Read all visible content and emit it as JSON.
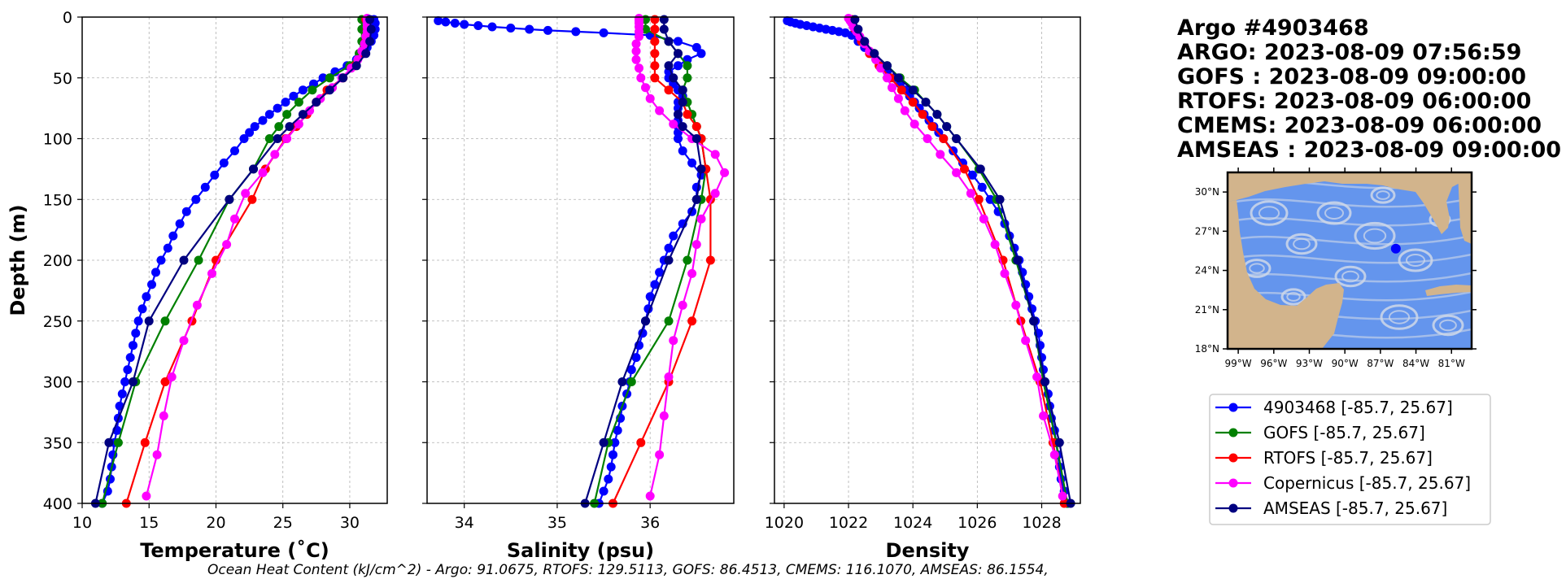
{
  "header": {
    "lines": [
      "Argo #4903468",
      "ARGO:  2023-08-09 07:56:59",
      "GOFS : 2023-08-09 09:00:00",
      "RTOFS: 2023-08-09 06:00:00",
      "CMEMS: 2023-08-09 06:00:00",
      "AMSEAS : 2023-08-09 09:00:00"
    ]
  },
  "footer": "Ocean Heat Content (kJ/cm^2) - Argo: 91.0675,  RTOFS: 129.5113,  GOFS: 86.4513,  CMEMS: 116.1070,  AMSEAS: 86.1554,",
  "map": {
    "lat_labels": [
      "30°N",
      "27°N",
      "24°N",
      "21°N",
      "18°N"
    ],
    "lon_labels": [
      "99°W",
      "96°W",
      "93°W",
      "90°W",
      "87°W",
      "84°W",
      "81°W"
    ],
    "colors": {
      "land": "#d2b48c",
      "ocean": "#6495ed",
      "streamlines": "#cfd8e8",
      "marker": "#0000ff"
    },
    "float_position": {
      "lon": -85.7,
      "lat": 25.67
    }
  },
  "legend": [
    {
      "label": "4903468 [-85.7, 25.67]",
      "color": "#0000ff"
    },
    {
      "label": "GOFS [-85.7, 25.67]",
      "color": "#008000"
    },
    {
      "label": "RTOFS [-85.7, 25.67]",
      "color": "#ff0000"
    },
    {
      "label": "Copernicus [-85.7, 25.67]",
      "color": "#ff00ff"
    },
    {
      "label": "AMSEAS [-85.7, 25.67]",
      "color": "#000080"
    }
  ],
  "chart_data": [
    {
      "type": "line",
      "xlabel": "Temperature (˚C)",
      "ylabel": "Depth (m)",
      "xlim": [
        10,
        32.8
      ],
      "ylim": [
        400,
        0
      ],
      "xticks": [
        10,
        15,
        20,
        25,
        30
      ],
      "yticks": [
        0,
        50,
        100,
        150,
        200,
        250,
        300,
        350,
        400
      ],
      "grid": true,
      "series": [
        {
          "name": "4903468",
          "color": "#0000ff",
          "depth": [
            2,
            5,
            10,
            15,
            20,
            25,
            30,
            35,
            40,
            45,
            50,
            55,
            60,
            65,
            70,
            75,
            80,
            85,
            90,
            95,
            100,
            110,
            120,
            130,
            140,
            150,
            160,
            170,
            180,
            190,
            200,
            210,
            220,
            230,
            240,
            250,
            260,
            270,
            280,
            290,
            300,
            310,
            320,
            330,
            340,
            350,
            360,
            370,
            380,
            390,
            400
          ],
          "values": [
            31.8,
            31.9,
            31.9,
            31.8,
            31.6,
            31.3,
            31,
            30.5,
            29.8,
            28.9,
            28,
            27.3,
            26.5,
            25.8,
            25.2,
            24.6,
            24,
            23.5,
            22.9,
            22.5,
            22.1,
            21.4,
            20.6,
            19.9,
            19.2,
            18.5,
            17.8,
            17.3,
            16.8,
            16.4,
            15.9,
            15.5,
            15.2,
            14.8,
            14.5,
            14.2,
            14,
            13.8,
            13.6,
            13.4,
            13.2,
            13,
            12.8,
            12.7,
            12.6,
            12.4,
            12.3,
            12.2,
            12.1,
            11.9,
            11.5
          ]
        },
        {
          "name": "GOFS",
          "color": "#008000",
          "depth": [
            2,
            10,
            20,
            30,
            40,
            50,
            60,
            70,
            80,
            90,
            100,
            125,
            150,
            200,
            250,
            300,
            350,
            400
          ],
          "values": [
            30.9,
            30.9,
            30.9,
            30.7,
            30,
            28.5,
            27.2,
            26.2,
            25.3,
            24.7,
            24,
            22.8,
            21,
            18.7,
            16.2,
            14,
            12.7,
            11.5
          ]
        },
        {
          "name": "RTOFS",
          "color": "#ff0000",
          "depth": [
            2,
            10,
            20,
            30,
            40,
            50,
            60,
            70,
            80,
            90,
            100,
            125,
            150,
            200,
            250,
            300,
            350,
            400
          ],
          "values": [
            31.2,
            31.3,
            31.2,
            31,
            30.4,
            29.5,
            28.3,
            27.5,
            26.8,
            26,
            25.2,
            23.7,
            22.7,
            20,
            18.2,
            16.2,
            14.7,
            13.3
          ]
        },
        {
          "name": "Copernicus",
          "color": "#ff00ff",
          "depth": [
            1,
            3,
            5,
            8,
            12,
            16,
            22,
            28,
            35,
            42,
            50,
            58,
            67,
            77,
            88,
            100,
            113,
            128,
            145,
            166,
            187,
            211,
            237,
            266,
            296,
            328,
            360,
            394
          ],
          "values": [
            31.3,
            31.3,
            31.3,
            31.3,
            31.3,
            31.2,
            31.1,
            30.9,
            30.6,
            30.1,
            29.4,
            28.7,
            27.8,
            27,
            26.2,
            25.3,
            24.4,
            23.5,
            22.2,
            21.4,
            20.8,
            19.7,
            18.6,
            17.6,
            16.7,
            16.1,
            15.6,
            14.8
          ]
        },
        {
          "name": "AMSEAS",
          "color": "#000080",
          "depth": [
            2,
            10,
            20,
            30,
            40,
            50,
            60,
            70,
            80,
            90,
            100,
            125,
            150,
            200,
            250,
            300,
            350,
            400
          ],
          "values": [
            31.5,
            31.6,
            31.5,
            31.2,
            30.5,
            29.5,
            28.5,
            27.5,
            26.5,
            25.5,
            24.6,
            22.8,
            21,
            17.6,
            15,
            13.8,
            12,
            11
          ]
        }
      ]
    },
    {
      "type": "line",
      "xlabel": "Salinity (psu)",
      "ylabel": "",
      "xlim": [
        33.6,
        36.9
      ],
      "ylim": [
        400,
        0
      ],
      "xticks": [
        34,
        35,
        36
      ],
      "yticks": [
        0,
        50,
        100,
        150,
        200,
        250,
        300,
        350,
        400
      ],
      "grid": true,
      "series": [
        {
          "name": "4903468",
          "color": "#0000ff",
          "depth": [
            3,
            4,
            5,
            6,
            7,
            8,
            9,
            10,
            11,
            12,
            13,
            15,
            20,
            25,
            30,
            35,
            40,
            45,
            50,
            55,
            60,
            65,
            70,
            75,
            80,
            85,
            90,
            95,
            100,
            110,
            120,
            130,
            140,
            150,
            160,
            170,
            180,
            190,
            200,
            210,
            220,
            230,
            240,
            250,
            260,
            270,
            280,
            290,
            300,
            310,
            320,
            330,
            340,
            350,
            360,
            370,
            380,
            390,
            400
          ],
          "values": [
            33.72,
            33.8,
            33.9,
            34,
            34.15,
            34.3,
            34.5,
            34.7,
            34.9,
            35.2,
            35.5,
            36,
            36.3,
            36.5,
            36.55,
            36.4,
            36.3,
            36.2,
            36.2,
            36.25,
            36.3,
            36.35,
            36.3,
            36.3,
            36.3,
            36.3,
            36.3,
            36.3,
            36.3,
            36.35,
            36.45,
            36.55,
            36.5,
            36.5,
            36.45,
            36.35,
            36.25,
            36.2,
            36.15,
            36.1,
            36.05,
            36,
            35.98,
            35.95,
            35.92,
            35.88,
            35.85,
            35.8,
            35.78,
            35.75,
            35.7,
            35.68,
            35.65,
            35.62,
            35.6,
            35.58,
            35.55,
            35.5,
            35.45
          ]
        },
        {
          "name": "GOFS",
          "color": "#008000",
          "depth": [
            2,
            10,
            20,
            30,
            40,
            50,
            60,
            70,
            80,
            90,
            100,
            125,
            150,
            200,
            250,
            300,
            350,
            400
          ],
          "values": [
            35.95,
            35.95,
            36.2,
            36.3,
            36.4,
            36.4,
            36.35,
            36.4,
            36.45,
            36.5,
            36.55,
            36.6,
            36.55,
            36.4,
            36.2,
            35.8,
            35.55,
            35.4
          ]
        },
        {
          "name": "RTOFS",
          "color": "#ff0000",
          "depth": [
            2,
            10,
            20,
            30,
            40,
            50,
            60,
            70,
            80,
            90,
            100,
            125,
            150,
            200,
            250,
            300,
            350,
            400
          ],
          "values": [
            36.05,
            36.05,
            36.05,
            36.05,
            36.05,
            36.05,
            36.2,
            36.35,
            36.4,
            36.5,
            36.55,
            36.6,
            36.65,
            36.65,
            36.45,
            36.2,
            35.9,
            35.6
          ]
        },
        {
          "name": "Copernicus",
          "color": "#ff00ff",
          "depth": [
            1,
            3,
            5,
            8,
            12,
            16,
            22,
            28,
            35,
            42,
            50,
            58,
            67,
            77,
            88,
            100,
            113,
            128,
            145,
            166,
            187,
            211,
            237,
            266,
            296,
            328,
            360,
            394
          ],
          "values": [
            35.88,
            35.88,
            35.88,
            35.88,
            35.88,
            35.88,
            35.85,
            35.85,
            35.85,
            35.88,
            35.9,
            35.95,
            36,
            36.1,
            36.25,
            36.45,
            36.7,
            36.8,
            36.7,
            36.55,
            36.5,
            36.45,
            36.35,
            36.25,
            36.2,
            36.15,
            36.1,
            36.0
          ]
        },
        {
          "name": "AMSEAS",
          "color": "#000080",
          "depth": [
            2,
            10,
            20,
            30,
            40,
            50,
            60,
            70,
            80,
            90,
            100,
            125,
            150,
            200,
            250,
            300,
            350,
            400
          ],
          "values": [
            36.15,
            36.15,
            36.2,
            36.3,
            36.2,
            36.25,
            36.35,
            36.35,
            36.3,
            36.35,
            36.5,
            36.55,
            36.5,
            36.2,
            35.95,
            35.7,
            35.5,
            35.3
          ]
        }
      ]
    },
    {
      "type": "line",
      "xlabel": "Density",
      "ylabel": "",
      "xlim": [
        1019.7,
        1029.2
      ],
      "ylim": [
        400,
        0
      ],
      "xticks": [
        1020,
        1022,
        1024,
        1026,
        1028
      ],
      "yticks": [
        0,
        50,
        100,
        150,
        200,
        250,
        300,
        350,
        400
      ],
      "grid": true,
      "series": [
        {
          "name": "4903468",
          "color": "#0000ff",
          "depth": [
            3,
            4,
            5,
            6,
            7,
            8,
            9,
            10,
            11,
            12,
            13,
            15,
            20,
            25,
            30,
            35,
            40,
            45,
            50,
            55,
            60,
            65,
            70,
            75,
            80,
            85,
            90,
            95,
            100,
            110,
            120,
            130,
            140,
            150,
            160,
            170,
            180,
            190,
            200,
            210,
            220,
            230,
            240,
            250,
            260,
            270,
            280,
            290,
            300,
            310,
            320,
            330,
            340,
            350,
            360,
            370,
            380,
            390,
            400
          ],
          "values": [
            1020.1,
            1020.2,
            1020.35,
            1020.5,
            1020.7,
            1020.9,
            1021.1,
            1021.3,
            1021.5,
            1021.7,
            1021.9,
            1022.1,
            1022.3,
            1022.5,
            1022.7,
            1022.85,
            1023,
            1023.2,
            1023.4,
            1023.6,
            1023.75,
            1023.9,
            1024.05,
            1024.2,
            1024.35,
            1024.5,
            1024.65,
            1024.8,
            1024.95,
            1025.25,
            1025.55,
            1025.85,
            1026.15,
            1026.4,
            1026.65,
            1026.85,
            1027,
            1027.15,
            1027.3,
            1027.4,
            1027.5,
            1027.6,
            1027.7,
            1027.8,
            1027.9,
            1027.95,
            1028,
            1028.05,
            1028.1,
            1028.2,
            1028.25,
            1028.3,
            1028.4,
            1028.45,
            1028.5,
            1028.55,
            1028.6,
            1028.7,
            1028.8
          ]
        },
        {
          "name": "GOFS",
          "color": "#008000",
          "depth": [
            2,
            10,
            20,
            30,
            40,
            50,
            60,
            70,
            80,
            90,
            100,
            125,
            150,
            200,
            250,
            300,
            350,
            400
          ],
          "values": [
            1022.1,
            1022.2,
            1022.45,
            1022.8,
            1023.2,
            1023.6,
            1024.05,
            1024.4,
            1024.75,
            1025.05,
            1025.35,
            1026.05,
            1026.6,
            1027.2,
            1027.75,
            1028.05,
            1028.45,
            1028.8
          ]
        },
        {
          "name": "RTOFS",
          "color": "#ff0000",
          "depth": [
            2,
            10,
            20,
            30,
            40,
            50,
            60,
            70,
            80,
            90,
            100,
            125,
            150,
            200,
            250,
            300,
            350,
            400
          ],
          "values": [
            1022.1,
            1022.2,
            1022.4,
            1022.65,
            1022.95,
            1023.3,
            1023.65,
            1024,
            1024.3,
            1024.6,
            1024.95,
            1025.6,
            1026.05,
            1026.8,
            1027.35,
            1027.95,
            1028.35,
            1028.7
          ]
        },
        {
          "name": "Copernicus",
          "color": "#ff00ff",
          "depth": [
            1,
            3,
            5,
            8,
            12,
            16,
            22,
            28,
            35,
            42,
            50,
            58,
            67,
            77,
            88,
            100,
            113,
            128,
            145,
            166,
            187,
            211,
            237,
            266,
            296,
            328,
            360,
            394
          ],
          "values": [
            1022,
            1022.05,
            1022.1,
            1022.15,
            1022.25,
            1022.35,
            1022.5,
            1022.65,
            1022.85,
            1023,
            1023.2,
            1023.35,
            1023.55,
            1023.75,
            1024.05,
            1024.45,
            1024.85,
            1025.35,
            1025.8,
            1026.2,
            1026.55,
            1026.85,
            1027.2,
            1027.5,
            1027.85,
            1028.05,
            1028.4,
            1028.65
          ]
        },
        {
          "name": "AMSEAS",
          "color": "#000080",
          "depth": [
            2,
            10,
            20,
            30,
            40,
            50,
            60,
            70,
            80,
            90,
            100,
            125,
            150,
            200,
            250,
            300,
            350,
            400
          ],
          "values": [
            1022.2,
            1022.3,
            1022.5,
            1022.8,
            1023.2,
            1023.55,
            1024,
            1024.4,
            1024.75,
            1025.05,
            1025.35,
            1026.1,
            1026.7,
            1027.25,
            1027.75,
            1028.1,
            1028.55,
            1028.9
          ]
        }
      ]
    }
  ]
}
